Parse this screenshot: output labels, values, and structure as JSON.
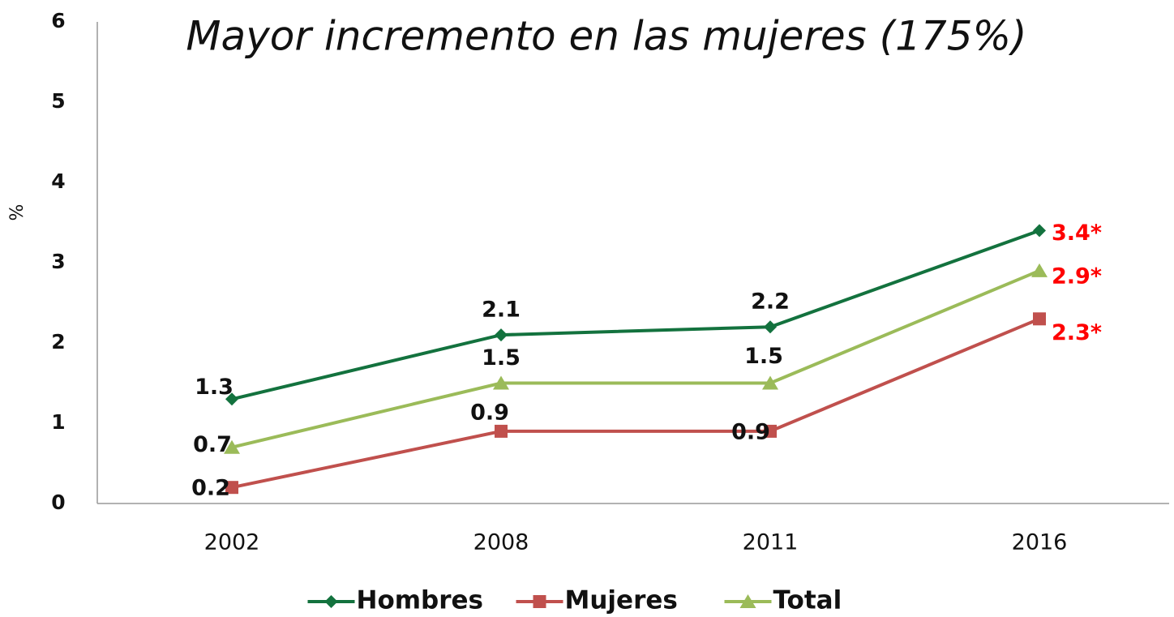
{
  "chart_data": {
    "type": "line",
    "title": "Mayor incremento en las mujeres (175%)",
    "y_label": "%",
    "categories": [
      "2002",
      "2008",
      "2011",
      "2016"
    ],
    "series": [
      {
        "name": "Hombres",
        "color": "#13723e",
        "marker": "diamond",
        "values": [
          1.3,
          2.1,
          2.2,
          3.4
        ],
        "value_labels": [
          "1.3",
          "2.1",
          "2.2",
          "3.4*"
        ]
      },
      {
        "name": "Mujeres",
        "color": "#c0504d",
        "marker": "square",
        "values": [
          0.2,
          0.9,
          0.9,
          2.3
        ],
        "value_labels": [
          "0.2",
          "0.9",
          "0.9",
          "2.3*"
        ]
      },
      {
        "name": "Total",
        "color": "#9bbb59",
        "marker": "triangle",
        "values": [
          0.7,
          1.5,
          1.5,
          2.9
        ],
        "value_labels": [
          "0.7",
          "1.5",
          "1.5",
          "2.9*"
        ]
      }
    ],
    "highlight_label_color": "#ff0000",
    "ylim": [
      0,
      6
    ],
    "yticks": [
      0,
      1,
      2,
      3,
      4,
      5,
      6
    ],
    "grid": false,
    "legend": "bottom"
  }
}
